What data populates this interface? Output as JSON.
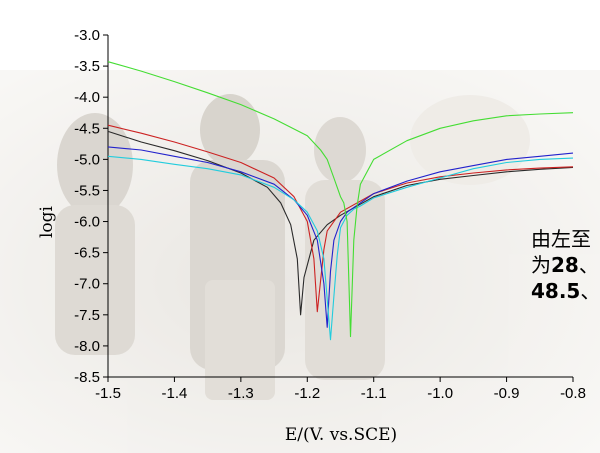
{
  "chart_data": {
    "type": "line",
    "xlabel": "E/(V.  vs.SCE)",
    "ylabel": "logi",
    "xlim": [
      -1.5,
      -0.8
    ],
    "ylim": [
      -8.5,
      -3.0
    ],
    "x_ticks": [
      "-1.5",
      "-1.4",
      "-1.3",
      "-1.2",
      "-1.1",
      "-1.0",
      "-0.9",
      "-0.8"
    ],
    "y_ticks": [
      "-3.0",
      "-3.5",
      "-4.0",
      "-4.5",
      "-5.0",
      "-5.5",
      "-6.0",
      "-6.5",
      "-7.0",
      "-7.5",
      "-8.0",
      "-8.5"
    ],
    "grid": false,
    "series": [
      {
        "color": "#2a2a2a",
        "x": [
          -1.5,
          -1.45,
          -1.4,
          -1.35,
          -1.3,
          -1.26,
          -1.24,
          -1.225,
          -1.215,
          -1.21,
          -1.205,
          -1.19,
          -1.17,
          -1.15,
          -1.1,
          -1.05,
          -1.0,
          -0.95,
          -0.9,
          -0.85,
          -0.8
        ],
        "y": [
          -4.55,
          -4.72,
          -4.86,
          -5.02,
          -5.22,
          -5.45,
          -5.7,
          -6.05,
          -6.6,
          -7.5,
          -6.9,
          -6.3,
          -6.05,
          -5.9,
          -5.6,
          -5.42,
          -5.32,
          -5.26,
          -5.2,
          -5.16,
          -5.13
        ]
      },
      {
        "color": "#cc2222",
        "x": [
          -1.5,
          -1.45,
          -1.4,
          -1.35,
          -1.3,
          -1.25,
          -1.22,
          -1.2,
          -1.19,
          -1.185,
          -1.18,
          -1.175,
          -1.17,
          -1.15,
          -1.1,
          -1.05,
          -1.0,
          -0.95,
          -0.9,
          -0.85,
          -0.8
        ],
        "y": [
          -4.45,
          -4.58,
          -4.72,
          -4.88,
          -5.05,
          -5.3,
          -5.6,
          -6.0,
          -6.6,
          -7.45,
          -6.95,
          -6.45,
          -6.15,
          -5.85,
          -5.55,
          -5.38,
          -5.28,
          -5.22,
          -5.17,
          -5.14,
          -5.12
        ]
      },
      {
        "color": "#2222cc",
        "x": [
          -1.5,
          -1.45,
          -1.4,
          -1.35,
          -1.3,
          -1.25,
          -1.22,
          -1.2,
          -1.185,
          -1.175,
          -1.17,
          -1.165,
          -1.16,
          -1.15,
          -1.14,
          -1.12,
          -1.1,
          -1.05,
          -1.0,
          -0.95,
          -0.9,
          -0.85,
          -0.8
        ],
        "y": [
          -4.8,
          -4.85,
          -4.95,
          -5.05,
          -5.2,
          -5.4,
          -5.65,
          -5.9,
          -6.3,
          -7.0,
          -7.7,
          -6.8,
          -6.3,
          -6.0,
          -5.85,
          -5.7,
          -5.55,
          -5.35,
          -5.2,
          -5.1,
          -5.0,
          -4.95,
          -4.9
        ]
      },
      {
        "color": "#22ccdd",
        "x": [
          -1.5,
          -1.45,
          -1.4,
          -1.35,
          -1.3,
          -1.25,
          -1.22,
          -1.2,
          -1.185,
          -1.175,
          -1.165,
          -1.16,
          -1.155,
          -1.15,
          -1.14,
          -1.13,
          -1.12,
          -1.1,
          -1.05,
          -1.0,
          -0.95,
          -0.9,
          -0.85,
          -0.8
        ],
        "y": [
          -4.95,
          -5.0,
          -5.08,
          -5.15,
          -5.25,
          -5.45,
          -5.65,
          -5.85,
          -6.15,
          -6.6,
          -7.9,
          -7.2,
          -6.55,
          -6.1,
          -5.9,
          -5.8,
          -5.75,
          -5.62,
          -5.45,
          -5.3,
          -5.15,
          -5.05,
          -5.0,
          -4.98
        ]
      },
      {
        "color": "#44dd33",
        "x": [
          -1.5,
          -1.45,
          -1.4,
          -1.35,
          -1.3,
          -1.25,
          -1.2,
          -1.18,
          -1.17,
          -1.16,
          -1.155,
          -1.15,
          -1.145,
          -1.14,
          -1.135,
          -1.13,
          -1.125,
          -1.12,
          -1.1,
          -1.05,
          -1.0,
          -0.95,
          -0.9,
          -0.85,
          -0.8
        ],
        "y": [
          -3.43,
          -3.58,
          -3.75,
          -3.93,
          -4.12,
          -4.35,
          -4.62,
          -4.85,
          -5.0,
          -5.3,
          -5.45,
          -5.6,
          -5.7,
          -6.0,
          -7.85,
          -6.3,
          -5.75,
          -5.4,
          -5.0,
          -4.7,
          -4.5,
          -4.38,
          -4.3,
          -4.27,
          -4.25
        ]
      }
    ]
  },
  "caption": {
    "lines": [
      [
        {
          "text": "由左至",
          "style": "cjk"
        }
      ],
      [
        {
          "text": "为",
          "style": "cjk"
        },
        {
          "text": "28",
          "style": "bold"
        },
        {
          "text": "、",
          "style": "cjk"
        }
      ],
      [
        {
          "text": "48.5",
          "style": "bold"
        },
        {
          "text": "、",
          "style": "cjk"
        }
      ]
    ]
  }
}
